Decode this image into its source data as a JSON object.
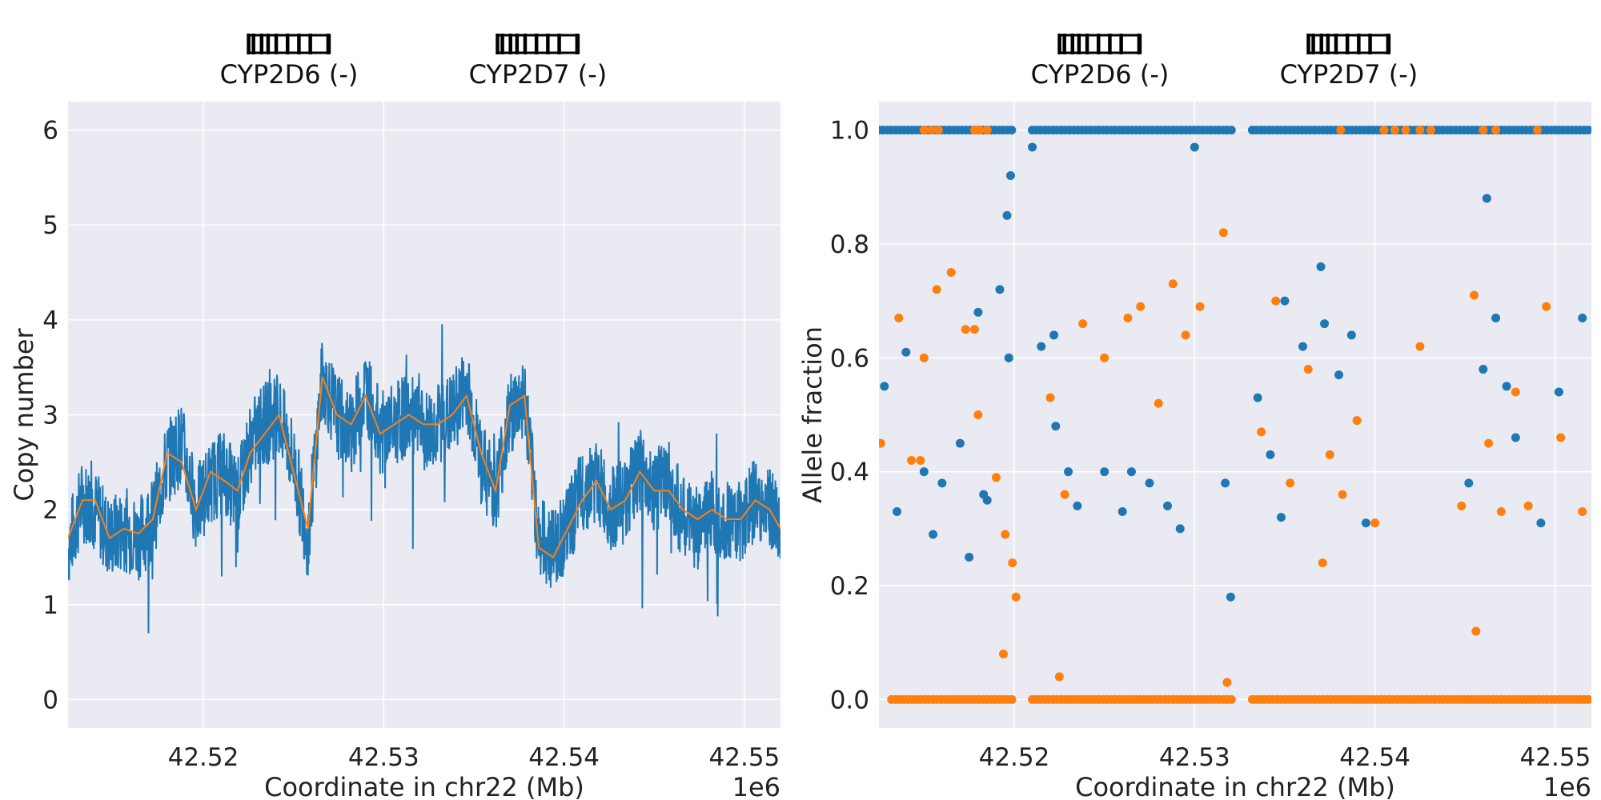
{
  "colors": {
    "panel_bg": "#EAEAF2",
    "grid": "#FFFFFF",
    "series_blue": "#1F77B4",
    "series_orange": "#FF7F0E",
    "gene_block": "#000000"
  },
  "chart_data": [
    {
      "type": "line",
      "xlabel": "Coordinate in chr22 (Mb)",
      "ylabel": "Copy number",
      "x_offset_text": "1e6",
      "xlim": [
        42512500,
        42552000
      ],
      "ylim": [
        -0.3,
        6.3
      ],
      "xticks": [
        42520000,
        42530000,
        42540000,
        42550000
      ],
      "xtick_labels": [
        "42.52",
        "42.53",
        "42.54",
        "42.55"
      ],
      "yticks": [
        0,
        1,
        2,
        3,
        4,
        5,
        6
      ],
      "ytick_labels": [
        "0",
        "1",
        "2",
        "3",
        "4",
        "5",
        "6"
      ],
      "grid": true,
      "genes": [
        {
          "label": "CYP2D6 (-)",
          "start": 42522500,
          "end": 42527000
        },
        {
          "label": "CYP2D7 (-)",
          "start": 42536300,
          "end": 42540800
        }
      ],
      "series": [
        {
          "role": "raw",
          "color": "#1F77B4",
          "x": [
            42512500,
            42513300,
            42514000,
            42514800,
            42515600,
            42516400,
            42517200,
            42518000,
            42518800,
            42519600,
            42520400,
            42521200,
            42521900,
            42522600,
            42523400,
            42524200,
            42525000,
            42525800,
            42526600,
            42527400,
            42528200,
            42529000,
            42529800,
            42530600,
            42531400,
            42532200,
            42533000,
            42533800,
            42534600,
            42535400,
            42536200,
            42537000,
            42537800,
            42538600,
            42539400,
            42540200,
            42541000,
            42541800,
            42542600,
            42543400,
            42544200,
            42545000,
            42545800,
            42546600,
            42547400,
            42548200,
            42549000,
            42549800,
            42550600,
            42551400,
            42552000
          ],
          "y": [
            1.6,
            2.1,
            2.0,
            1.7,
            1.8,
            1.7,
            1.9,
            2.5,
            2.7,
            2.0,
            2.3,
            2.4,
            2.1,
            2.7,
            2.9,
            3.0,
            2.5,
            1.7,
            3.4,
            3.0,
            2.8,
            3.3,
            2.8,
            2.9,
            3.0,
            2.8,
            2.9,
            3.0,
            3.3,
            2.5,
            2.2,
            3.0,
            3.2,
            1.7,
            1.6,
            1.8,
            2.2,
            2.3,
            2.0,
            2.1,
            2.4,
            2.2,
            2.3,
            1.9,
            1.8,
            2.0,
            1.9,
            1.9,
            2.1,
            2.0,
            1.8
          ]
        },
        {
          "role": "smoothed",
          "color": "#FF7F0E",
          "x": [
            42512500,
            42513300,
            42514000,
            42514800,
            42515600,
            42516400,
            42517200,
            42518000,
            42518800,
            42519600,
            42520400,
            42521200,
            42521900,
            42522600,
            42523400,
            42524200,
            42525000,
            42525800,
            42526600,
            42527400,
            42528200,
            42529000,
            42529800,
            42530600,
            42531400,
            42532200,
            42533000,
            42533800,
            42534600,
            42535400,
            42536200,
            42537000,
            42537800,
            42538600,
            42539400,
            42540200,
            42541000,
            42541800,
            42542600,
            42543400,
            42544200,
            42545000,
            42545800,
            42546600,
            42547400,
            42548200,
            42549000,
            42549800,
            42550600,
            42551400,
            42552000
          ],
          "y": [
            1.7,
            2.1,
            2.1,
            1.7,
            1.8,
            1.75,
            1.9,
            2.6,
            2.5,
            2.0,
            2.4,
            2.3,
            2.2,
            2.6,
            2.8,
            3.0,
            2.4,
            1.8,
            3.4,
            3.0,
            2.9,
            3.2,
            2.8,
            2.9,
            3.0,
            2.9,
            2.9,
            3.0,
            3.2,
            2.6,
            2.2,
            3.1,
            3.2,
            1.6,
            1.5,
            1.8,
            2.1,
            2.3,
            2.0,
            2.1,
            2.4,
            2.2,
            2.2,
            2.0,
            1.9,
            2.0,
            1.9,
            1.9,
            2.1,
            2.0,
            1.8
          ]
        }
      ]
    },
    {
      "type": "scatter",
      "xlabel": "Coordinate in chr22 (Mb)",
      "ylabel": "Allele fraction",
      "x_offset_text": "1e6",
      "xlim": [
        42512500,
        42552000
      ],
      "ylim": [
        -0.05,
        1.05
      ],
      "xticks": [
        42520000,
        42530000,
        42540000,
        42550000
      ],
      "xtick_labels": [
        "42.52",
        "42.53",
        "42.54",
        "42.55"
      ],
      "yticks": [
        0.0,
        0.2,
        0.4,
        0.6,
        0.8,
        1.0
      ],
      "ytick_labels": [
        "0.0",
        "0.2",
        "0.4",
        "0.6",
        "0.8",
        "1.0"
      ],
      "grid": true,
      "genes": [
        {
          "label": "CYP2D6 (-)",
          "start": 42522500,
          "end": 42527000
        },
        {
          "label": "CYP2D7 (-)",
          "start": 42536300,
          "end": 42540800
        }
      ],
      "series": [
        {
          "color": "#1F77B4",
          "x": [
            42512800,
            42514000,
            42515000,
            42516000,
            42517000,
            42518000,
            42518500,
            42519200,
            42519600,
            42519800,
            42521000,
            42521500,
            42522200,
            42523000,
            42523500,
            42525000,
            42526000,
            42527500,
            42528500,
            42529200,
            42530000,
            42532000,
            42533500,
            42534200,
            42535000,
            42536000,
            42537200,
            42538000,
            42538700,
            42539500,
            42545200,
            42546000,
            42546700,
            42547300,
            42547800,
            42549200,
            42550200,
            42551500,
            42513500,
            42515500,
            42517500,
            42518300,
            42519700,
            42522300,
            42526500,
            42531700,
            42534800,
            42537000,
            42546200
          ],
          "y": [
            0.55,
            0.61,
            0.4,
            0.38,
            0.45,
            0.68,
            0.35,
            0.72,
            0.85,
            0.92,
            0.97,
            0.62,
            0.64,
            0.4,
            0.34,
            0.4,
            0.33,
            0.38,
            0.34,
            0.3,
            0.97,
            0.18,
            0.53,
            0.43,
            0.7,
            0.62,
            0.66,
            0.57,
            0.64,
            0.31,
            0.38,
            0.58,
            0.67,
            0.55,
            0.46,
            0.31,
            0.54,
            0.67,
            0.33,
            0.29,
            0.25,
            0.36,
            0.6,
            0.48,
            0.4,
            0.38,
            0.32,
            0.76,
            0.88
          ]
        },
        {
          "color": "#FF7F0E",
          "x": [
            42512600,
            42513600,
            42514300,
            42515000,
            42515700,
            42516500,
            42517300,
            42518000,
            42519000,
            42519500,
            42519900,
            42520100,
            42522000,
            42522800,
            42523800,
            42525000,
            42526300,
            42527000,
            42528000,
            42528800,
            42529500,
            42530300,
            42533700,
            42534500,
            42535300,
            42536300,
            42537500,
            42538200,
            42539000,
            42540000,
            42544800,
            42545500,
            42546300,
            42547000,
            42547800,
            42548500,
            42549500,
            42550300,
            42551500,
            42514800,
            42517800,
            42519400,
            42522500,
            42531600,
            42531800,
            42537100,
            42542500,
            42545600
          ],
          "y": [
            0.45,
            0.67,
            0.42,
            0.6,
            0.72,
            0.75,
            0.65,
            0.5,
            0.39,
            0.29,
            0.24,
            0.18,
            0.53,
            0.36,
            0.66,
            0.6,
            0.67,
            0.69,
            0.52,
            0.73,
            0.64,
            0.69,
            0.47,
            0.7,
            0.38,
            0.58,
            0.43,
            0.36,
            0.49,
            0.31,
            0.34,
            0.71,
            0.45,
            0.33,
            0.54,
            0.34,
            0.69,
            0.46,
            0.33,
            0.42,
            0.65,
            0.08,
            0.04,
            0.82,
            0.03,
            0.24,
            0.62,
            0.12
          ]
        },
        {
          "color": "#1F77B4",
          "role": "upper_band",
          "x_ranges": [
            [
              42512500,
              42519900
            ],
            [
              42521000,
              42532100
            ],
            [
              42533200,
              42552000
            ]
          ],
          "y": 1.0
        },
        {
          "color": "#FF7F0E",
          "role": "upper_band_overlay",
          "x_list": [
            42515000,
            42515400,
            42515800,
            42517800,
            42518100,
            42518500,
            42538100,
            42540500,
            42541100,
            42541700,
            42542500,
            42543100,
            42546000,
            42546700,
            42549000
          ],
          "y": 1.0
        },
        {
          "color": "#FF7F0E",
          "role": "lower_band",
          "x_ranges": [
            [
              42513200,
              42519900
            ],
            [
              42521000,
              42532100
            ],
            [
              42533200,
              42552000
            ]
          ],
          "y": 0.0
        }
      ]
    }
  ]
}
